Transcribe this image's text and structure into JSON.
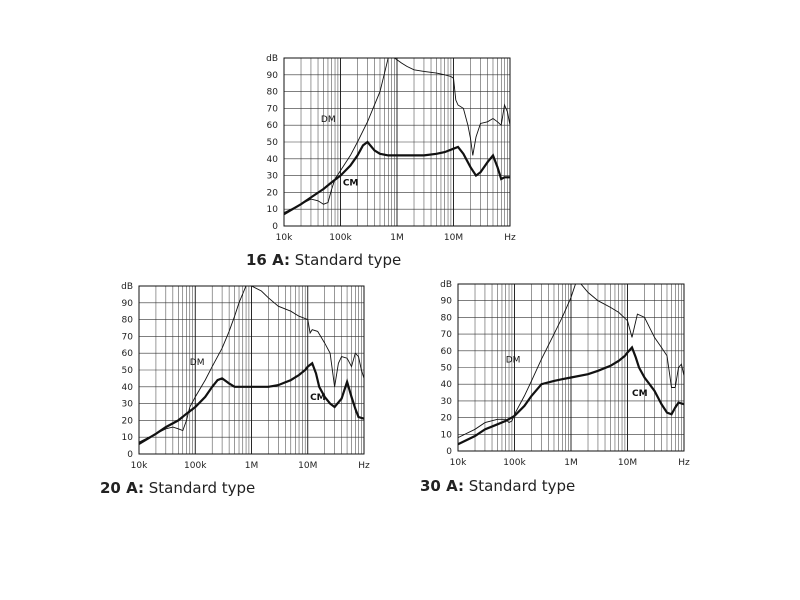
{
  "chart_data": [
    {
      "type": "line",
      "caption_bold": "16 A:",
      "caption_text": " Standard type",
      "xscale": "log",
      "xlim": [
        10000,
        100000000
      ],
      "ylim": [
        0,
        100
      ],
      "xticks": [
        10000,
        100000,
        1000000,
        10000000,
        100000000
      ],
      "xtick_labels": [
        "10k",
        "100k",
        "1M",
        "10M",
        "Hz"
      ],
      "yticks": [
        0,
        10,
        20,
        30,
        40,
        50,
        60,
        70,
        80,
        90,
        100
      ],
      "ytick_labels": [
        "0",
        "10",
        "20",
        "30",
        "40",
        "50",
        "60",
        "70",
        "80",
        "90",
        "dB"
      ],
      "grid": true,
      "series": [
        {
          "name": "DM",
          "style": "thin",
          "label_at": [
            45000,
            62
          ],
          "x": [
            10000,
            20000,
            30000,
            40000,
            50000,
            60000,
            70000,
            80000,
            100000,
            150000,
            200000,
            300000,
            500000,
            700000,
            800000,
            900000,
            1000000,
            1200000,
            1500000,
            2000000,
            3000000,
            5000000,
            7000000,
            9000000,
            10000000,
            11000000,
            12000000,
            15000000,
            18000000,
            20000000,
            22000000,
            25000000,
            30000000,
            40000000,
            50000000,
            60000000,
            70000000,
            80000000,
            90000000,
            100000000
          ],
          "y": [
            8,
            13,
            16,
            15,
            13,
            14,
            22,
            28,
            33,
            42,
            50,
            62,
            80,
            100,
            100,
            100,
            99,
            97,
            95,
            93,
            92,
            91,
            90,
            89,
            88,
            75,
            72,
            70,
            60,
            52,
            42,
            53,
            61,
            62,
            64,
            62,
            60,
            72,
            68,
            60
          ]
        },
        {
          "name": "CM",
          "style": "thick",
          "label_at": [
            110000,
            24
          ],
          "x": [
            10000,
            20000,
            30000,
            50000,
            70000,
            100000,
            150000,
            200000,
            250000,
            300000,
            400000,
            500000,
            700000,
            1000000,
            2000000,
            3000000,
            5000000,
            7000000,
            10000000,
            12000000,
            15000000,
            20000000,
            25000000,
            30000000,
            40000000,
            50000000,
            60000000,
            70000000,
            80000000,
            100000000
          ],
          "y": [
            7,
            13,
            17,
            22,
            26,
            30,
            36,
            42,
            48,
            50,
            45,
            43,
            42,
            42,
            42,
            42,
            43,
            44,
            46,
            47,
            43,
            35,
            30,
            32,
            38,
            42,
            35,
            28,
            29,
            29
          ]
        }
      ]
    },
    {
      "type": "line",
      "caption_bold": "20 A:",
      "caption_text": " Standard type",
      "xscale": "log",
      "xlim": [
        10000,
        100000000
      ],
      "ylim": [
        0,
        100
      ],
      "xticks": [
        10000,
        100000,
        1000000,
        10000000,
        100000000
      ],
      "xtick_labels": [
        "10k",
        "100k",
        "1M",
        "10M",
        "Hz"
      ],
      "yticks": [
        0,
        10,
        20,
        30,
        40,
        50,
        60,
        70,
        80,
        90,
        100
      ],
      "ytick_labels": [
        "0",
        "10",
        "20",
        "30",
        "40",
        "50",
        "60",
        "70",
        "80",
        "90",
        "dB"
      ],
      "grid": true,
      "series": [
        {
          "name": "DM",
          "style": "thin",
          "label_at": [
            80000,
            53
          ],
          "x": [
            10000,
            20000,
            30000,
            40000,
            50000,
            60000,
            70000,
            80000,
            100000,
            150000,
            200000,
            300000,
            400000,
            500000,
            600000,
            800000,
            1000000,
            1500000,
            2000000,
            3000000,
            5000000,
            7000000,
            10000000,
            11000000,
            12000000,
            15000000,
            20000000,
            25000000,
            30000000,
            35000000,
            40000000,
            50000000,
            60000000,
            70000000,
            80000000,
            90000000,
            100000000
          ],
          "y": [
            7,
            12,
            15,
            16,
            15,
            14,
            20,
            28,
            34,
            44,
            52,
            63,
            73,
            82,
            90,
            100,
            100,
            97,
            93,
            88,
            85,
            82,
            80,
            72,
            74,
            73,
            66,
            60,
            40,
            54,
            58,
            57,
            52,
            60,
            58,
            50,
            45
          ]
        },
        {
          "name": "CM",
          "style": "thick",
          "label_at": [
            11000000,
            32
          ],
          "x": [
            10000,
            20000,
            30000,
            50000,
            70000,
            100000,
            150000,
            200000,
            250000,
            300000,
            400000,
            500000,
            700000,
            1000000,
            2000000,
            3000000,
            5000000,
            7000000,
            9000000,
            10000000,
            12000000,
            14000000,
            16000000,
            20000000,
            25000000,
            30000000,
            40000000,
            50000000,
            60000000,
            70000000,
            80000000,
            100000000
          ],
          "y": [
            6,
            12,
            16,
            20,
            24,
            28,
            34,
            40,
            44,
            45,
            42,
            40,
            40,
            40,
            40,
            41,
            44,
            47,
            50,
            52,
            54,
            48,
            40,
            34,
            30,
            28,
            33,
            43,
            34,
            27,
            22,
            21
          ]
        }
      ]
    },
    {
      "type": "line",
      "caption_bold": "30 A:",
      "caption_text": " Standard type",
      "xscale": "log",
      "xlim": [
        10000,
        100000000
      ],
      "ylim": [
        0,
        100
      ],
      "xticks": [
        10000,
        100000,
        1000000,
        10000000,
        100000000
      ],
      "xtick_labels": [
        "10k",
        "100k",
        "1M",
        "10M",
        "Hz"
      ],
      "yticks": [
        0,
        10,
        20,
        30,
        40,
        50,
        60,
        70,
        80,
        90,
        100
      ],
      "ytick_labels": [
        "0",
        "10",
        "20",
        "30",
        "40",
        "50",
        "60",
        "70",
        "80",
        "90",
        "dB"
      ],
      "grid": true,
      "series": [
        {
          "name": "DM",
          "style": "thin",
          "label_at": [
            70000,
            53
          ],
          "x": [
            10000,
            20000,
            30000,
            50000,
            70000,
            80000,
            90000,
            100000,
            150000,
            200000,
            300000,
            500000,
            700000,
            1000000,
            1200000,
            1500000,
            2000000,
            3000000,
            5000000,
            7000000,
            10000000,
            12000000,
            15000000,
            20000000,
            30000000,
            40000000,
            50000000,
            60000000,
            70000000,
            80000000,
            90000000,
            100000000
          ],
          "y": [
            8,
            13,
            17,
            19,
            19,
            17,
            18,
            22,
            33,
            42,
            55,
            70,
            80,
            92,
            100,
            100,
            95,
            90,
            86,
            83,
            78,
            68,
            82,
            80,
            68,
            62,
            57,
            38,
            38,
            50,
            52,
            45
          ]
        },
        {
          "name": "CM",
          "style": "thick",
          "label_at": [
            12000000,
            33
          ],
          "x": [
            10000,
            20000,
            30000,
            50000,
            70000,
            100000,
            150000,
            200000,
            300000,
            500000,
            700000,
            1000000,
            2000000,
            3000000,
            5000000,
            7000000,
            9000000,
            10000000,
            12000000,
            14000000,
            16000000,
            20000000,
            30000000,
            40000000,
            50000000,
            60000000,
            70000000,
            80000000,
            100000000
          ],
          "y": [
            4,
            9,
            13,
            16,
            18,
            21,
            27,
            33,
            40,
            42,
            43,
            44,
            46,
            48,
            51,
            54,
            57,
            59,
            62,
            56,
            50,
            44,
            36,
            28,
            23,
            22,
            26,
            29,
            28
          ]
        }
      ]
    }
  ]
}
